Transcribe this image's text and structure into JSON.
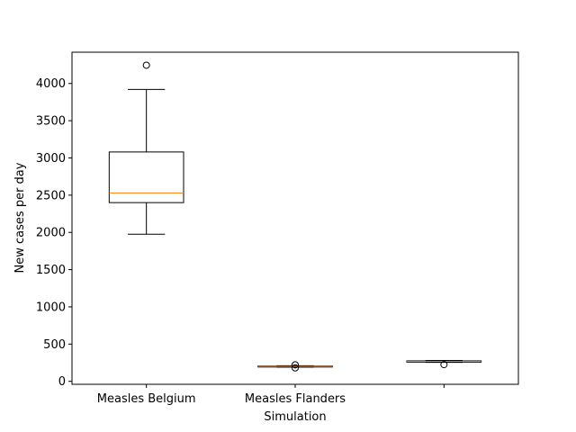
{
  "chart_data": {
    "type": "boxplot",
    "xlabel": "Simulation",
    "ylabel": "New cases per day",
    "ylim": [
      -40,
      4420
    ],
    "yticks": [
      0,
      500,
      1000,
      1500,
      2000,
      2500,
      3000,
      3500,
      4000
    ],
    "grid": false,
    "categories": [
      "Measles Belgium",
      "Measles Flanders",
      ""
    ],
    "boxes": [
      {
        "whisker_low": 1975,
        "q1": 2400,
        "median": 2530,
        "q3": 3080,
        "whisker_high": 3920,
        "outliers": [
          4245
        ]
      },
      {
        "whisker_low": 190,
        "q1": 192,
        "median": 200,
        "q3": 205,
        "whisker_high": 210,
        "outliers": [
          180,
          222
        ]
      },
      {
        "whisker_low": 255,
        "q1": 258,
        "median": 268,
        "q3": 275,
        "whisker_high": 280,
        "outliers": [
          225
        ]
      }
    ],
    "colors": {
      "box": "#000000",
      "median": "#ff7f0e",
      "background": "#ffffff"
    }
  }
}
